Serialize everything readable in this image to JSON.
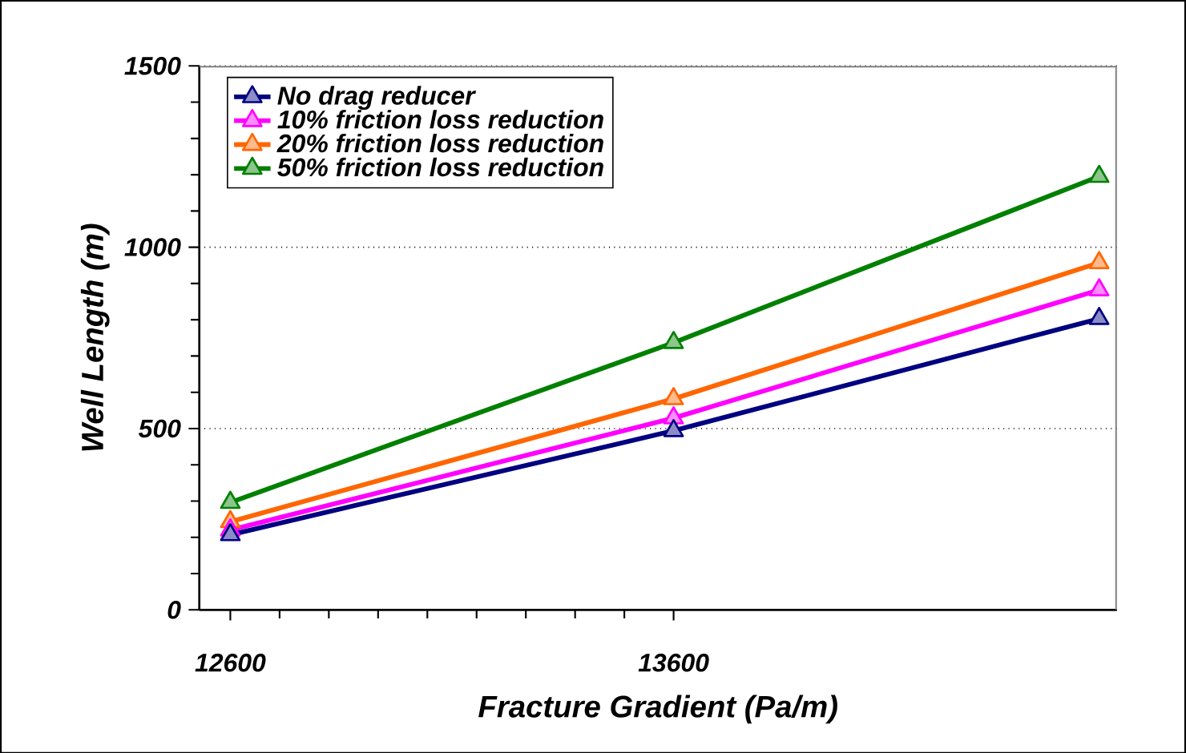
{
  "chart_data": {
    "type": "line",
    "xlabel": "Fracture Gradient (Pa/m)",
    "ylabel": "Well Length (m)",
    "x": [
      12600,
      13600,
      14560
    ],
    "series": [
      {
        "name": "No drag reducer",
        "color": "#000080",
        "values": [
          207,
          494,
          803
        ]
      },
      {
        "name": "10% friction loss reduction",
        "color": "#ff00ff",
        "values": [
          220,
          529,
          882
        ]
      },
      {
        "name": "20% friction loss reduction",
        "color": "#ff6600",
        "values": [
          243,
          582,
          957
        ]
      },
      {
        "name": "50% friction loss reduction",
        "color": "#008000",
        "values": [
          296,
          737,
          1195
        ]
      }
    ],
    "xlim": [
      12530,
      14600
    ],
    "xticks": [
      12600,
      13600
    ],
    "ylim": [
      0,
      1500
    ],
    "yticks": [
      0,
      500,
      1000,
      1500
    ],
    "grid": "y",
    "legend": "top left",
    "marker": "triangle",
    "line_style": "solid"
  }
}
